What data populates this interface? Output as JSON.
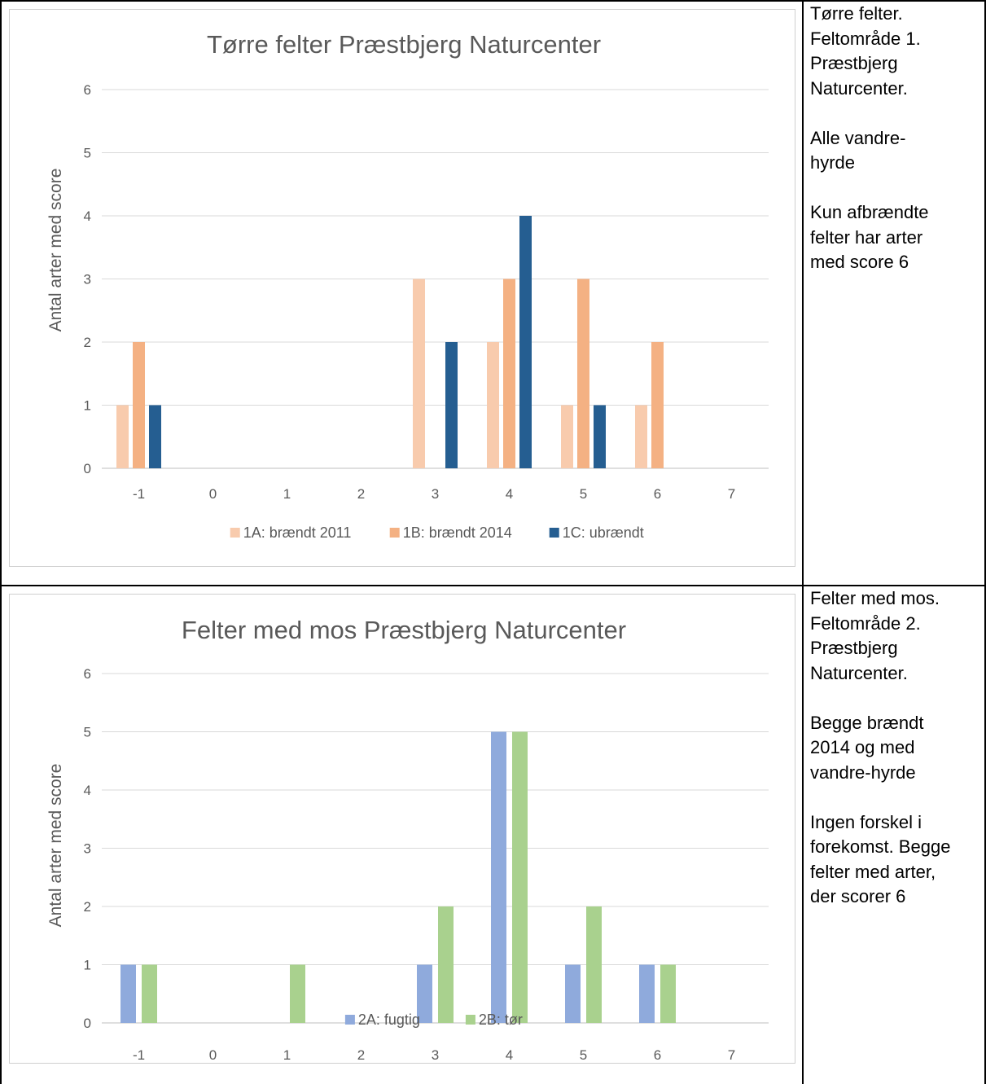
{
  "charts": [
    {
      "type": "bar",
      "title": "Tørre felter Præstbjerg Naturcenter",
      "ylabel": "Antal arter med  score",
      "xlabel": "",
      "categories": [
        "-1",
        "0",
        "1",
        "2",
        "3",
        "4",
        "5",
        "6",
        "7"
      ],
      "ylim": [
        0,
        6
      ],
      "yticks": [
        0,
        1,
        2,
        3,
        4,
        5,
        6
      ],
      "grid": true,
      "legend_position": "bottom",
      "series": [
        {
          "name": "1A: brændt 2011",
          "color": "#f8cbad",
          "values": [
            1,
            0,
            0,
            0,
            3,
            2,
            1,
            1,
            0
          ]
        },
        {
          "name": "1B: brændt 2014",
          "color": "#f4b183",
          "values": [
            2,
            0,
            0,
            0,
            0,
            3,
            3,
            2,
            0
          ]
        },
        {
          "name": "1C: ubrændt",
          "color": "#255e91",
          "values": [
            1,
            0,
            0,
            0,
            2,
            4,
            1,
            0,
            0
          ]
        }
      ]
    },
    {
      "type": "bar",
      "title": "Felter med mos Præstbjerg Naturcenter",
      "ylabel": "Antal arter med score",
      "xlabel": "",
      "categories": [
        "-1",
        "0",
        "1",
        "2",
        "3",
        "4",
        "5",
        "6",
        "7"
      ],
      "ylim": [
        0,
        6
      ],
      "yticks": [
        0,
        1,
        2,
        3,
        4,
        5,
        6
      ],
      "grid": true,
      "legend_position": "bottom",
      "series": [
        {
          "name": "2A: fugtig",
          "color": "#8faadc",
          "values": [
            1,
            0,
            0,
            0,
            1,
            5,
            1,
            1,
            0
          ]
        },
        {
          "name": "2B: tør",
          "color": "#a9d18e",
          "values": [
            1,
            0,
            1,
            0,
            2,
            5,
            2,
            1,
            0
          ]
        }
      ]
    }
  ],
  "notes": [
    {
      "paragraphs": [
        [
          "Tørre felter.",
          "Feltområde 1.",
          "Præstbjerg",
          "Naturcenter."
        ],
        [
          "Alle vandre-",
          "hyrde"
        ],
        [
          "Kun afbrændte",
          "felter har arter",
          "med score 6"
        ]
      ]
    },
    {
      "paragraphs": [
        [
          "Felter med mos.",
          "Feltområde 2.",
          "Præstbjerg",
          "Naturcenter."
        ],
        [
          "Begge brændt",
          "2014 og med",
          "vandre-hyrde"
        ],
        [
          "Ingen forskel i",
          "forekomst. Begge",
          "felter med arter,",
          "der scorer 6"
        ]
      ]
    }
  ]
}
